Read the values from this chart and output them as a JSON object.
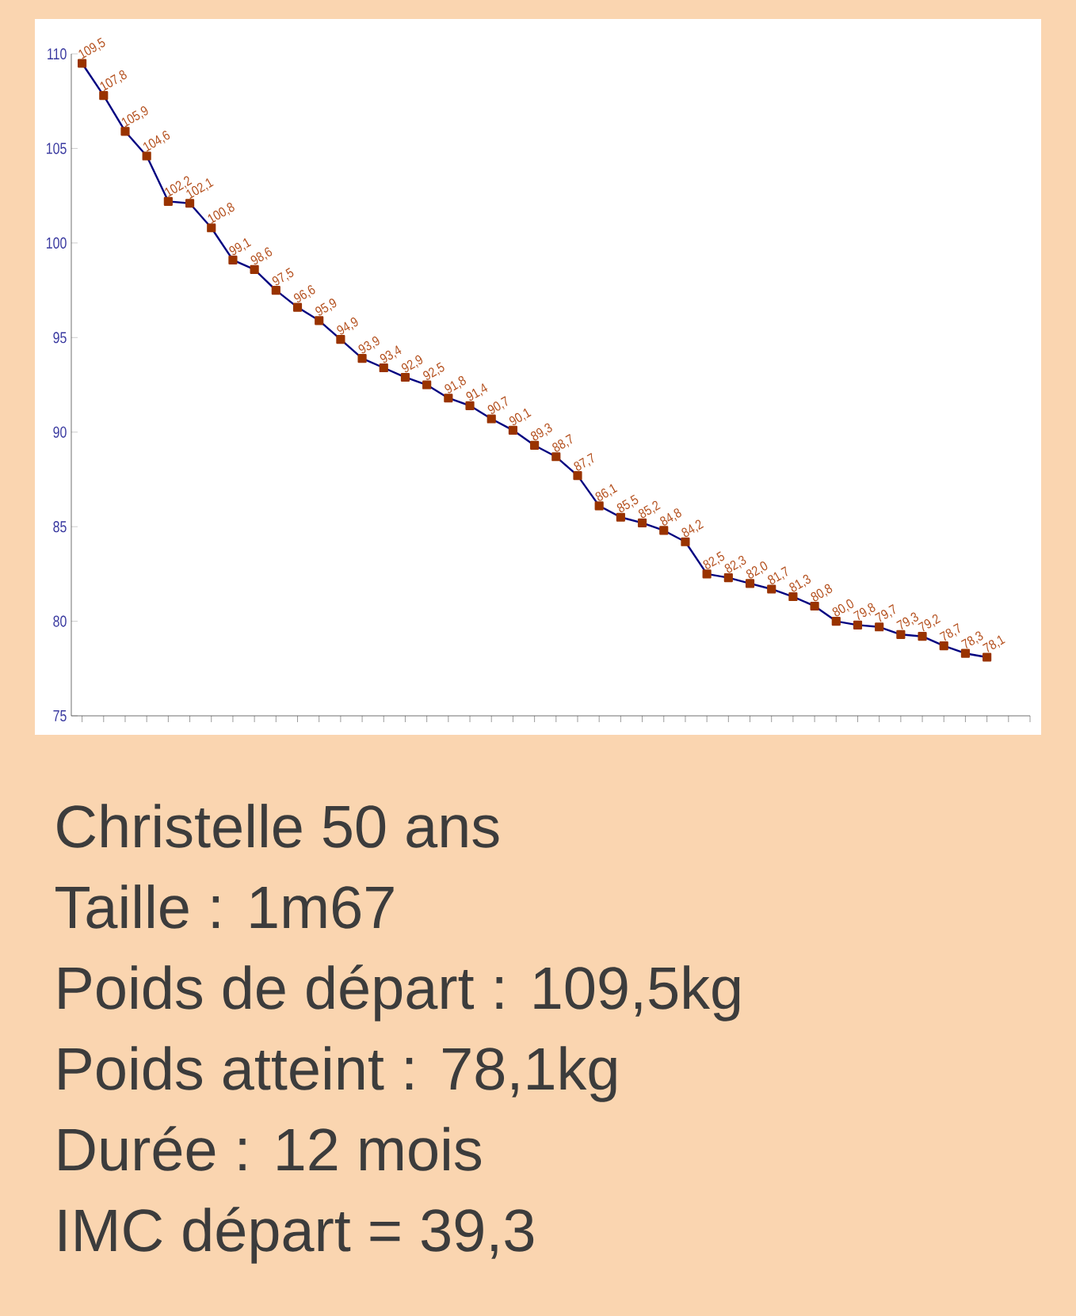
{
  "chart_data": {
    "type": "line",
    "categories": [
      null,
      null,
      null,
      null,
      null,
      null,
      null,
      null,
      null,
      null,
      null,
      null,
      null,
      null,
      null,
      null,
      null,
      null,
      null,
      null,
      null,
      null,
      null,
      null,
      null,
      null,
      null,
      null,
      null,
      null,
      null,
      null,
      null,
      null,
      null,
      null,
      null,
      null,
      null,
      null,
      null,
      null,
      null
    ],
    "values": [
      109.5,
      107.8,
      105.9,
      104.6,
      102.2,
      102.1,
      100.8,
      99.1,
      98.6,
      97.5,
      96.6,
      95.9,
      94.9,
      93.9,
      93.4,
      92.9,
      92.5,
      91.8,
      91.4,
      90.7,
      90.1,
      89.3,
      88.7,
      87.7,
      86.1,
      85.5,
      85.2,
      84.8,
      84.2,
      82.5,
      82.3,
      82.0,
      81.7,
      81.3,
      80.8,
      80.0,
      79.8,
      79.7,
      79.3,
      79.2,
      78.7,
      78.3,
      78.1
    ],
    "value_labels": [
      "109,5",
      "107,8",
      "105,9",
      "104,6",
      "102,2",
      "102,1",
      "100,8",
      "99,1",
      "98,6",
      "97,5",
      "96,6",
      "95,9",
      "94,9",
      "93,9",
      "93,4",
      "92,9",
      "92,5",
      "91,8",
      "91,4",
      "90,7",
      "90,1",
      "89,3",
      "88,7",
      "87,7",
      "86,1",
      "85,5",
      "85,2",
      "84,8",
      "84,2",
      "82,5",
      "82,3",
      "82,0",
      "81,7",
      "81,3",
      "80,8",
      "80,0",
      "79,8",
      "79,7",
      "79,3",
      "79,2",
      "78,7",
      "78,3",
      "78,1"
    ],
    "color": "#000080",
    "marker": "square",
    "line_style": "solid",
    "ylim": [
      75,
      110
    ],
    "yticks": [
      75,
      80,
      85,
      90,
      95,
      100,
      105,
      110
    ],
    "tick_labels": "y",
    "annotations": [
      "Christelle 50 ans",
      "Taille : 1m67",
      "Poids de départ : 109,5kg",
      "Poids atteint : 78,1kg",
      "Durée : 12 mois",
      "IMC départ = 39,3"
    ]
  }
}
